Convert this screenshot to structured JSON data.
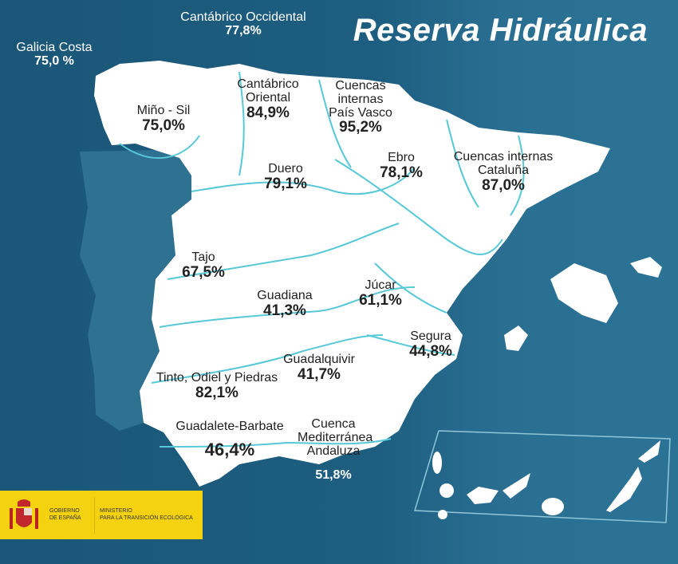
{
  "title": "Reserva Hidráulica",
  "colors": {
    "sea": "#1d5e80",
    "land": "#ffffff",
    "portugal": "#2f7190",
    "rivers": "#56c8d6",
    "logo_bg": "#f5d20f"
  },
  "basins": [
    {
      "name": "Galicia Costa",
      "value": "75,0 %"
    },
    {
      "name": "Cantábrico Occidental",
      "value": "77,8%"
    },
    {
      "name": "Miño - Sil",
      "value": "75,0%"
    },
    {
      "name": "Cantábrico Oriental",
      "value": "84,9%"
    },
    {
      "name": "Cuencas internas País Vasco",
      "value": "95,2%"
    },
    {
      "name": "Duero",
      "value": "79,1%"
    },
    {
      "name": "Ebro",
      "value": "78,1%"
    },
    {
      "name": "Cuencas internas Cataluña",
      "value": "87,0%"
    },
    {
      "name": "Tajo",
      "value": "67,5%"
    },
    {
      "name": "Guadiana",
      "value": "41,3%"
    },
    {
      "name": "Júcar",
      "value": "61,1%"
    },
    {
      "name": "Segura",
      "value": "44,8%"
    },
    {
      "name": "Guadalquivir",
      "value": "41,7%"
    },
    {
      "name": "Tinto, Odiel y Piedras",
      "value": "82,1%"
    },
    {
      "name": "Guadalete-Barbate",
      "value": "46,4%"
    },
    {
      "name": "Cuenca Mediterránea Andaluza",
      "value": "51,8%"
    }
  ],
  "logo": {
    "line1": "GOBIERNO",
    "line2": "DE ESPAÑA",
    "line3": "MINISTERIO",
    "line4": "PARA LA TRANSICIÓN ECOLÓGICA"
  }
}
